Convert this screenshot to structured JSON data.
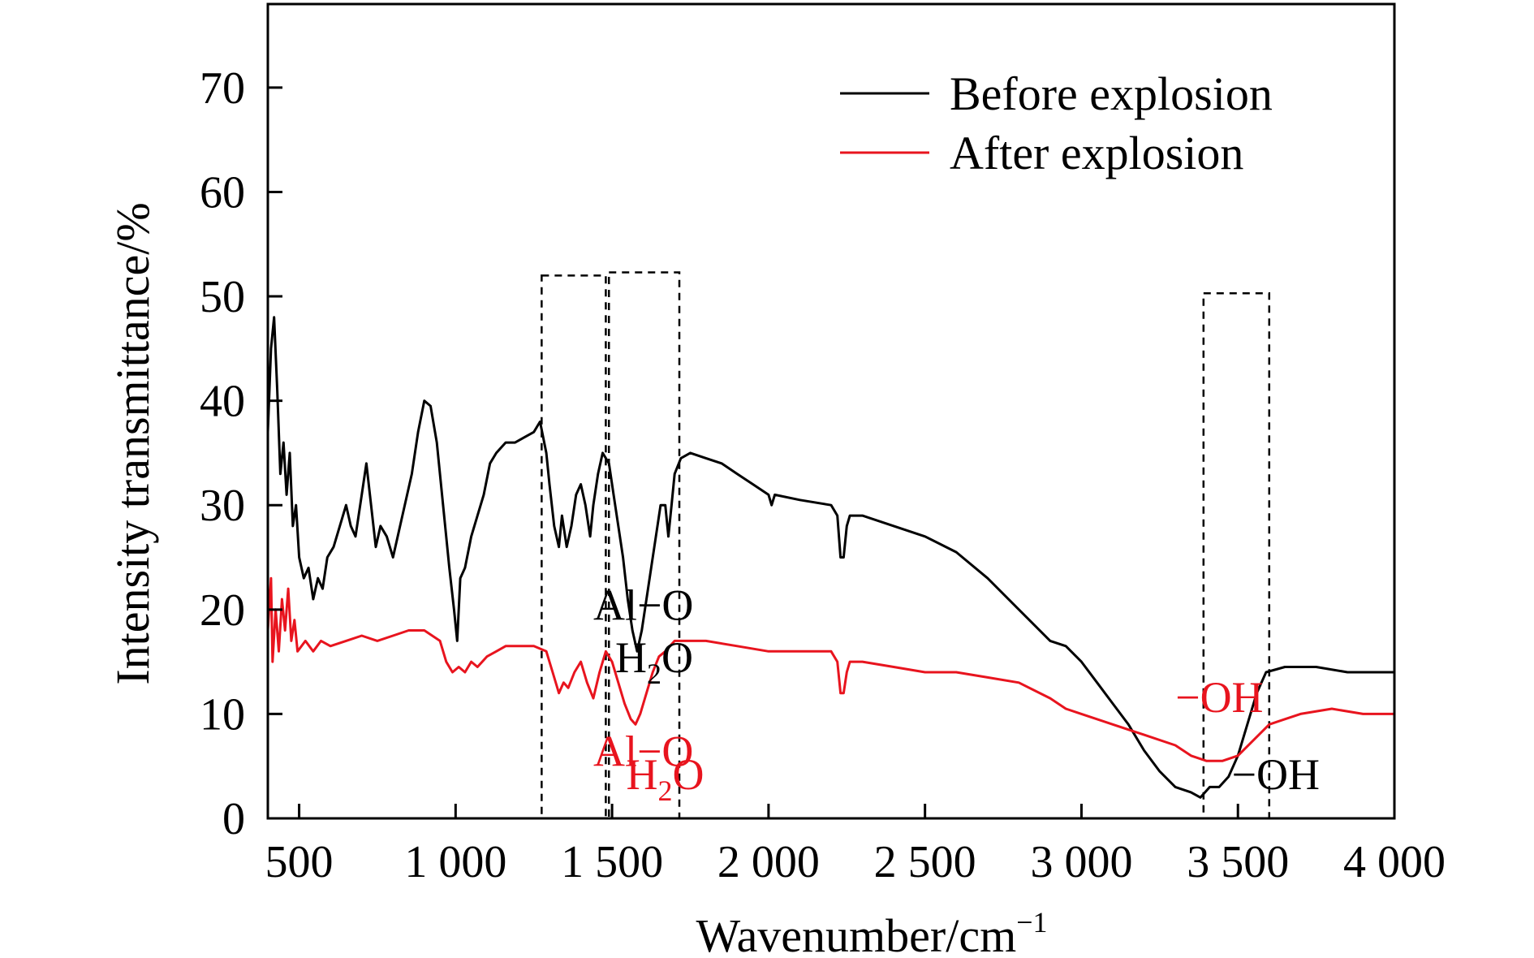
{
  "chart_data": {
    "type": "line",
    "xlabel": "Wavenumber/cm",
    "xlabel_sup": "−1",
    "ylabel": "Intensity transmittance/%",
    "xlim": [
      400,
      4000
    ],
    "ylim": [
      0,
      78
    ],
    "x_ticks": [
      {
        "value": 500,
        "label": "500"
      },
      {
        "value": 1000,
        "label": "1 000"
      },
      {
        "value": 1500,
        "label": "1 500"
      },
      {
        "value": 2000,
        "label": "2 000"
      },
      {
        "value": 2500,
        "label": "2 500"
      },
      {
        "value": 3000,
        "label": "3 000"
      },
      {
        "value": 3500,
        "label": "3 500"
      },
      {
        "value": 4000,
        "label": "4 000"
      }
    ],
    "y_ticks": [
      {
        "value": 0,
        "label": "0"
      },
      {
        "value": 10,
        "label": "10"
      },
      {
        "value": 20,
        "label": "20"
      },
      {
        "value": 30,
        "label": "30"
      },
      {
        "value": 40,
        "label": "40"
      },
      {
        "value": 50,
        "label": "50"
      },
      {
        "value": 60,
        "label": "60"
      },
      {
        "value": 70,
        "label": "70"
      }
    ],
    "grid": false,
    "legend_position": "top-right",
    "series": [
      {
        "name": "Before explosion",
        "color": "#000000",
        "points": [
          [
            400,
            37
          ],
          [
            410,
            45
          ],
          [
            420,
            48
          ],
          [
            430,
            41
          ],
          [
            440,
            33
          ],
          [
            450,
            36
          ],
          [
            460,
            31
          ],
          [
            470,
            35
          ],
          [
            480,
            28
          ],
          [
            490,
            30
          ],
          [
            500,
            25
          ],
          [
            515,
            23
          ],
          [
            530,
            24
          ],
          [
            545,
            21
          ],
          [
            560,
            23
          ],
          [
            575,
            22
          ],
          [
            590,
            25
          ],
          [
            610,
            26
          ],
          [
            630,
            28
          ],
          [
            650,
            30
          ],
          [
            665,
            28
          ],
          [
            680,
            27
          ],
          [
            700,
            31
          ],
          [
            715,
            34
          ],
          [
            730,
            30
          ],
          [
            745,
            26
          ],
          [
            760,
            28
          ],
          [
            780,
            27
          ],
          [
            800,
            25
          ],
          [
            830,
            29
          ],
          [
            860,
            33
          ],
          [
            880,
            37
          ],
          [
            900,
            40
          ],
          [
            920,
            39.5
          ],
          [
            940,
            36
          ],
          [
            960,
            30
          ],
          [
            980,
            24
          ],
          [
            995,
            20
          ],
          [
            1005,
            17
          ],
          [
            1015,
            23
          ],
          [
            1030,
            24
          ],
          [
            1050,
            27
          ],
          [
            1070,
            29
          ],
          [
            1090,
            31
          ],
          [
            1110,
            34
          ],
          [
            1130,
            35
          ],
          [
            1160,
            36
          ],
          [
            1190,
            36
          ],
          [
            1220,
            36.5
          ],
          [
            1250,
            37
          ],
          [
            1270,
            38
          ],
          [
            1290,
            35
          ],
          [
            1300,
            32
          ],
          [
            1315,
            28
          ],
          [
            1330,
            26
          ],
          [
            1340,
            29
          ],
          [
            1355,
            26
          ],
          [
            1370,
            28
          ],
          [
            1385,
            31
          ],
          [
            1400,
            32
          ],
          [
            1415,
            30
          ],
          [
            1430,
            27
          ],
          [
            1440,
            30
          ],
          [
            1455,
            33
          ],
          [
            1470,
            35
          ],
          [
            1490,
            34
          ],
          [
            1505,
            31
          ],
          [
            1520,
            28
          ],
          [
            1535,
            25
          ],
          [
            1550,
            21
          ],
          [
            1565,
            18
          ],
          [
            1580,
            16
          ],
          [
            1595,
            18
          ],
          [
            1610,
            21
          ],
          [
            1625,
            24
          ],
          [
            1640,
            27
          ],
          [
            1655,
            30
          ],
          [
            1670,
            30
          ],
          [
            1680,
            27
          ],
          [
            1690,
            30
          ],
          [
            1700,
            33
          ],
          [
            1720,
            34.5
          ],
          [
            1750,
            35
          ],
          [
            1800,
            34.5
          ],
          [
            1850,
            34
          ],
          [
            1900,
            33
          ],
          [
            1950,
            32
          ],
          [
            2000,
            31
          ],
          [
            2010,
            30
          ],
          [
            2020,
            31
          ],
          [
            2100,
            30.5
          ],
          [
            2200,
            30
          ],
          [
            2220,
            29
          ],
          [
            2230,
            25
          ],
          [
            2240,
            25
          ],
          [
            2250,
            28
          ],
          [
            2260,
            29
          ],
          [
            2300,
            29
          ],
          [
            2400,
            28
          ],
          [
            2500,
            27
          ],
          [
            2600,
            25.5
          ],
          [
            2700,
            23
          ],
          [
            2800,
            20
          ],
          [
            2900,
            17
          ],
          [
            2950,
            16.5
          ],
          [
            3000,
            15
          ],
          [
            3050,
            13
          ],
          [
            3100,
            11
          ],
          [
            3150,
            9
          ],
          [
            3200,
            6.5
          ],
          [
            3250,
            4.5
          ],
          [
            3300,
            3
          ],
          [
            3350,
            2.5
          ],
          [
            3380,
            2
          ],
          [
            3410,
            3
          ],
          [
            3440,
            3
          ],
          [
            3470,
            4
          ],
          [
            3500,
            6
          ],
          [
            3530,
            9
          ],
          [
            3560,
            12
          ],
          [
            3590,
            14
          ],
          [
            3650,
            14.5
          ],
          [
            3750,
            14.5
          ],
          [
            3850,
            14
          ],
          [
            3950,
            14
          ],
          [
            4000,
            14
          ]
        ]
      },
      {
        "name": "After explosion",
        "color": "#e8141e",
        "points": [
          [
            400,
            18
          ],
          [
            410,
            23
          ],
          [
            415,
            15
          ],
          [
            425,
            20
          ],
          [
            435,
            16
          ],
          [
            445,
            21
          ],
          [
            455,
            18
          ],
          [
            465,
            22
          ],
          [
            475,
            17
          ],
          [
            485,
            19
          ],
          [
            495,
            16
          ],
          [
            520,
            17
          ],
          [
            545,
            16
          ],
          [
            570,
            17
          ],
          [
            600,
            16.5
          ],
          [
            650,
            17
          ],
          [
            700,
            17.5
          ],
          [
            750,
            17
          ],
          [
            800,
            17.5
          ],
          [
            850,
            18
          ],
          [
            900,
            18
          ],
          [
            950,
            17
          ],
          [
            970,
            15
          ],
          [
            990,
            14
          ],
          [
            1010,
            14.5
          ],
          [
            1030,
            14
          ],
          [
            1050,
            15
          ],
          [
            1070,
            14.5
          ],
          [
            1100,
            15.5
          ],
          [
            1130,
            16
          ],
          [
            1160,
            16.5
          ],
          [
            1200,
            16.5
          ],
          [
            1250,
            16.5
          ],
          [
            1290,
            16
          ],
          [
            1310,
            14
          ],
          [
            1330,
            12
          ],
          [
            1345,
            13
          ],
          [
            1360,
            12.5
          ],
          [
            1380,
            14
          ],
          [
            1400,
            15
          ],
          [
            1420,
            13
          ],
          [
            1440,
            11.5
          ],
          [
            1460,
            14
          ],
          [
            1480,
            16
          ],
          [
            1500,
            15
          ],
          [
            1520,
            13
          ],
          [
            1540,
            11
          ],
          [
            1560,
            9.5
          ],
          [
            1575,
            9
          ],
          [
            1590,
            10
          ],
          [
            1610,
            12
          ],
          [
            1630,
            14
          ],
          [
            1650,
            15.5
          ],
          [
            1670,
            16
          ],
          [
            1700,
            17
          ],
          [
            1750,
            17
          ],
          [
            1800,
            17
          ],
          [
            1900,
            16.5
          ],
          [
            2000,
            16
          ],
          [
            2100,
            16
          ],
          [
            2200,
            16
          ],
          [
            2220,
            15
          ],
          [
            2230,
            12
          ],
          [
            2240,
            12
          ],
          [
            2250,
            14
          ],
          [
            2260,
            15
          ],
          [
            2300,
            15
          ],
          [
            2400,
            14.5
          ],
          [
            2500,
            14
          ],
          [
            2600,
            14
          ],
          [
            2700,
            13.5
          ],
          [
            2800,
            13
          ],
          [
            2900,
            11.5
          ],
          [
            2950,
            10.5
          ],
          [
            3000,
            10
          ],
          [
            3100,
            9
          ],
          [
            3200,
            8
          ],
          [
            3300,
            7
          ],
          [
            3350,
            6
          ],
          [
            3400,
            5.5
          ],
          [
            3450,
            5.5
          ],
          [
            3500,
            6
          ],
          [
            3550,
            7.5
          ],
          [
            3600,
            9
          ],
          [
            3650,
            9.5
          ],
          [
            3700,
            10
          ],
          [
            3800,
            10.5
          ],
          [
            3900,
            10
          ],
          [
            4000,
            10
          ]
        ]
      }
    ],
    "highlight_regions": [
      {
        "x0": 1275,
        "x1": 1480,
        "ytop": 52
      },
      {
        "x0": 1490,
        "x1": 1715,
        "ytop": 52.3
      },
      {
        "x0": 3390,
        "x1": 3600,
        "ytop": 50.3
      }
    ],
    "annotations": [
      {
        "id": "alo-before",
        "text": "Al−O",
        "x": 1440,
        "y": 19,
        "color": "#000000"
      },
      {
        "id": "h2o-before",
        "text": "H",
        "sub": "2",
        "tail": "O",
        "x": 1510,
        "y": 14,
        "color": "#000000"
      },
      {
        "id": "alo-after",
        "text": "Al−O",
        "x": 1440,
        "y": 5,
        "color": "#e8141e"
      },
      {
        "id": "h2o-after",
        "text": "H",
        "sub": "2",
        "tail": "O",
        "x": 1545,
        "y": 2.8,
        "color": "#e8141e"
      },
      {
        "id": "oh-after",
        "text": "−OH",
        "x": 3300,
        "y": 10.2,
        "color": "#e8141e"
      },
      {
        "id": "oh-before",
        "text": "−OH",
        "x": 3480,
        "y": 2.8,
        "color": "#000000"
      }
    ]
  }
}
